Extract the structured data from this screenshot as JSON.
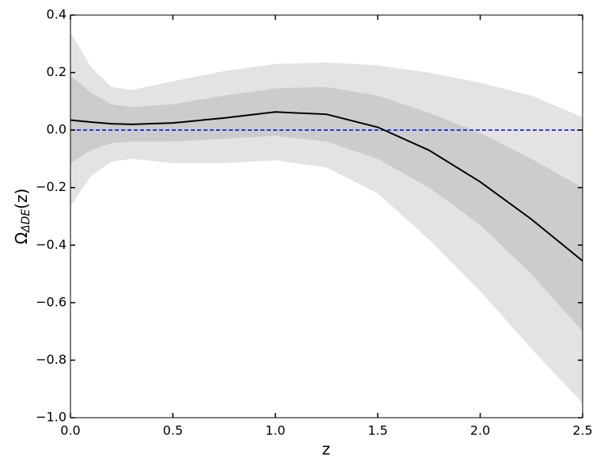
{
  "chart_data": {
    "type": "line",
    "xlabel": "z",
    "ylabel": {
      "main": "Ω",
      "sub": "ΔDE",
      "tail": "(z)"
    },
    "x": [
      0,
      0.1,
      0.2,
      0.3,
      0.5,
      0.75,
      1.0,
      1.25,
      1.5,
      1.75,
      2.0,
      2.25,
      2.5
    ],
    "series": [
      {
        "color": "#000000",
        "values": [
          0.035,
          0.028,
          0.022,
          0.02,
          0.025,
          0.042,
          0.063,
          0.055,
          0.01,
          -0.07,
          -0.18,
          -0.31,
          -0.455
        ]
      }
    ],
    "bands": [
      {
        "color": "#e3e3e3",
        "upper": [
          0.34,
          0.22,
          0.15,
          0.14,
          0.17,
          0.205,
          0.23,
          0.235,
          0.225,
          0.2,
          0.165,
          0.12,
          0.045
        ],
        "lower": [
          -0.265,
          -0.16,
          -0.11,
          -0.1,
          -0.115,
          -0.115,
          -0.105,
          -0.13,
          -0.22,
          -0.38,
          -0.56,
          -0.76,
          -0.95
        ]
      },
      {
        "color": "#cccccc",
        "upper": [
          0.19,
          0.13,
          0.09,
          0.08,
          0.09,
          0.12,
          0.145,
          0.15,
          0.12,
          0.06,
          -0.01,
          -0.1,
          -0.2
        ],
        "lower": [
          -0.115,
          -0.07,
          -0.045,
          -0.04,
          -0.04,
          -0.03,
          -0.02,
          -0.04,
          -0.1,
          -0.2,
          -0.33,
          -0.5,
          -0.7
        ]
      }
    ],
    "hline": {
      "y": 0,
      "color": "#0000ee",
      "dashed": true
    },
    "xlim": [
      0,
      2.5
    ],
    "ylim": [
      -1.0,
      0.4
    ],
    "xticks": [
      {
        "value": 0,
        "label": "0.0"
      },
      0.5,
      {
        "value": 1,
        "label": "1.0"
      },
      1.5,
      {
        "value": 2,
        "label": "2.0"
      },
      2.5
    ],
    "yticks": [
      {
        "value": -1,
        "label": "−1.0"
      },
      {
        "value": -0.8,
        "label": "−0.8"
      },
      {
        "value": -0.6,
        "label": "−0.6"
      },
      {
        "value": -0.4,
        "label": "−0.4"
      },
      {
        "value": -0.2,
        "label": "−0.2"
      },
      {
        "value": 0,
        "label": "0.0"
      },
      0.2,
      0.4
    ]
  }
}
